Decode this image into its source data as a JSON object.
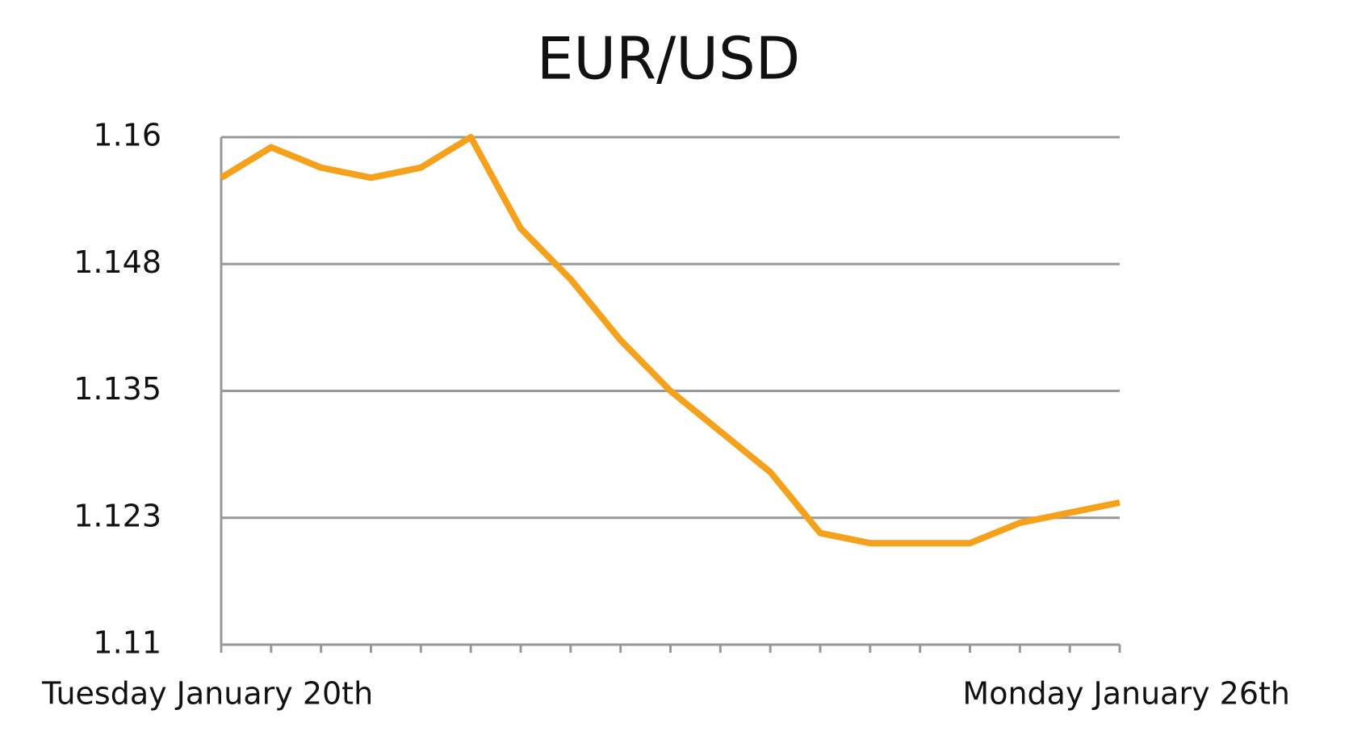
{
  "chart_data": {
    "type": "line",
    "title": "EUR/USD",
    "categories": [
      "Tuesday January 20th",
      null,
      null,
      null,
      null,
      null,
      null,
      null,
      null,
      null,
      null,
      null,
      null,
      null,
      null,
      null,
      null,
      null,
      "Monday January 26th"
    ],
    "series": [
      {
        "name": "EUR/USD",
        "color": "#f5a11c",
        "values": [
          1.156,
          1.159,
          1.157,
          1.156,
          1.157,
          1.16,
          1.151,
          1.146,
          1.14,
          1.135,
          1.131,
          1.127,
          1.121,
          1.12,
          1.12,
          1.12,
          1.122,
          1.123,
          1.124
        ]
      }
    ],
    "ylim": [
      1.11,
      1.16
    ],
    "yticks": [
      1.11,
      {
        "value": 1.1225,
        "label": "1.123"
      },
      1.135,
      {
        "value": 1.1475,
        "label": "1.148"
      },
      1.16
    ],
    "grid": true
  }
}
